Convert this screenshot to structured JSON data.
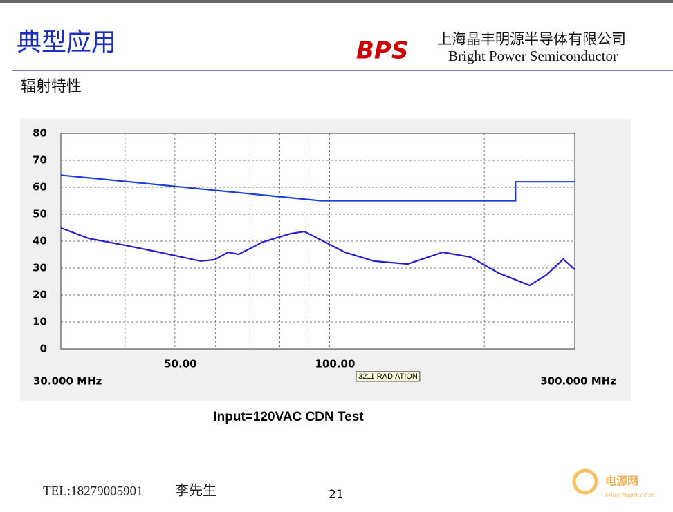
{
  "header": {
    "title": "典型应用",
    "company_cn": "上海晶丰明源半导体有限公司",
    "company_en": "Bright Power Semiconductor",
    "logo": "BPS"
  },
  "subtitle": "辐射特性",
  "caption": "Input=120VAC  CDN Test",
  "footer": {
    "tel": "TEL:18279005901",
    "contact": "李先生",
    "page": "21"
  },
  "watermark": {
    "name": "电源网",
    "site": "DianYuan.com"
  },
  "chart_data": {
    "type": "line",
    "log_x": true,
    "annotation": "3211 RADIATION",
    "xlim": [
      30,
      300
    ],
    "xticks": [
      {
        "value": 30,
        "label": "30.000 MHz"
      },
      {
        "value": 50,
        "label": "50.00"
      },
      {
        "value": 100,
        "label": "100.00"
      },
      {
        "value": 300,
        "label": "300.000 MHz"
      }
    ],
    "xgrid": [
      40,
      50,
      60,
      70,
      80,
      90,
      100,
      200
    ],
    "ylim": [
      0,
      80
    ],
    "yticks": [
      0,
      10,
      20,
      30,
      40,
      50,
      60,
      70,
      80
    ],
    "grid": true,
    "series": [
      {
        "color": "#1a3fd6",
        "x": [
          30,
          96,
          230,
          230,
          300
        ],
        "values": [
          64.5,
          55,
          55,
          62,
          62
        ]
      },
      {
        "color": "#2222d0",
        "x": [
          30,
          34,
          40,
          46.6,
          56.1,
          59.7,
          63.5,
          66.5,
          74.2,
          84,
          89.3,
          95,
          107,
          122,
          142,
          166,
          188,
          213,
          245,
          264,
          285,
          300
        ],
        "values": [
          44.9,
          41,
          38.5,
          35.9,
          32.6,
          33.1,
          35.9,
          35.1,
          39.7,
          42.8,
          43.6,
          41,
          35.9,
          32.6,
          31.5,
          35.9,
          34.1,
          28.2,
          23.6,
          27.4,
          33.3,
          29.5
        ]
      }
    ]
  }
}
